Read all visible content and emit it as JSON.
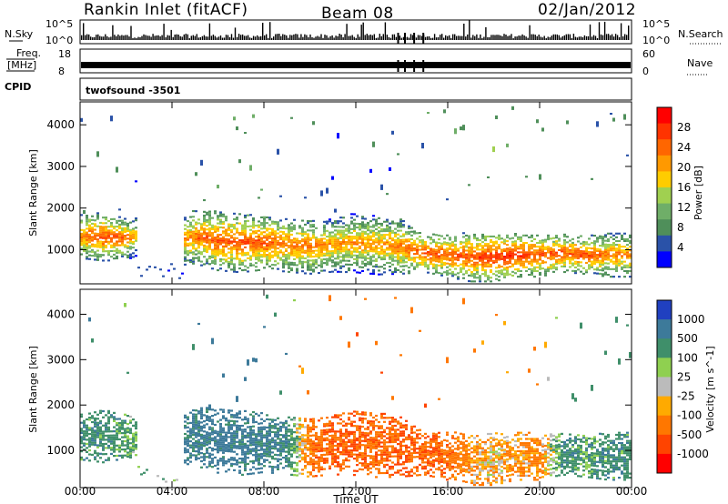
{
  "header": {
    "title": "Rankin Inlet (fitACF)",
    "beam": "Beam 08",
    "date": "02/Jan/2012"
  },
  "panels": {
    "nsky_label": "N.Sky",
    "nsearch_label": "N.Search",
    "freq_label_1": "Freq.",
    "freq_label_2": "[MHz]",
    "nave_label": "Nave",
    "cpid_label": "CPID",
    "cpid_value": "twofsound -3501",
    "nsky_ticks": [
      "10^5",
      "10^0"
    ],
    "nsearch_ticks": [
      "10^5",
      "10^0"
    ],
    "freq_ticks": [
      "18",
      "8"
    ],
    "nave_ticks": [
      "60",
      "0"
    ]
  },
  "colors": {
    "power_scale": [
      "#0000ff",
      "#2a52a8",
      "#4f8f5a",
      "#6fae68",
      "#a0d050",
      "#ffcc00",
      "#ff9900",
      "#ff6600",
      "#ff3300",
      "#ff0000"
    ],
    "velocity_scale": [
      "#2040c0",
      "#3d7a9a",
      "#3f8f6a",
      "#8fd050",
      "#bbbbbb",
      "#ffaa00",
      "#ff7700",
      "#ff4400",
      "#ff0000"
    ]
  },
  "chart_data": [
    {
      "type": "heatmap",
      "name": "power",
      "xlabel": "Time UT",
      "ylabel": "Slant Range [km]",
      "x_tick_labels": [
        "00:00",
        "04:00",
        "08:00",
        "12:00",
        "16:00",
        "20:00",
        "00:00"
      ],
      "y_tick_labels": [
        "1000",
        "2000",
        "3000",
        "4000"
      ],
      "ylim": [
        180,
        4550
      ],
      "colorbar_label": "Power [dB]",
      "colorbar_ticks": [
        "4",
        "8",
        "12",
        "16",
        "20",
        "24",
        "28"
      ],
      "x_hours": [
        0.0,
        1.0,
        2.0,
        2.5,
        3.5,
        4.5,
        5.0,
        6.0,
        7.0,
        8.0,
        9.0,
        10.0,
        11.0,
        12.0,
        13.0,
        14.0,
        15.0,
        16.0,
        17.0,
        18.0,
        19.0,
        20.0,
        21.0,
        22.0,
        23.0,
        24.0
      ],
      "echo_center_km": [
        1300,
        1300,
        1250,
        1300,
        null,
        1200,
        1300,
        1200,
        1150,
        1150,
        1100,
        1050,
        1100,
        1150,
        1100,
        1050,
        900,
        850,
        800,
        800,
        850,
        850,
        900,
        850,
        850,
        850
      ],
      "echo_halfwidth_km": [
        400,
        450,
        400,
        350,
        null,
        450,
        500,
        550,
        550,
        500,
        500,
        500,
        500,
        550,
        550,
        500,
        350,
        400,
        450,
        450,
        400,
        400,
        350,
        350,
        400,
        400
      ],
      "peak_power_db": [
        26,
        28,
        26,
        22,
        null,
        24,
        26,
        28,
        28,
        28,
        26,
        26,
        24,
        24,
        24,
        26,
        28,
        28,
        28,
        30,
        30,
        28,
        28,
        28,
        26,
        26
      ]
    },
    {
      "type": "heatmap",
      "name": "velocity",
      "xlabel": "Time UT",
      "ylabel": "Slant Range [km]",
      "x_tick_labels": [
        "00:00",
        "04:00",
        "08:00",
        "12:00",
        "16:00",
        "20:00",
        "00:00"
      ],
      "y_tick_labels": [
        "1000",
        "2000",
        "3000",
        "4000"
      ],
      "ylim": [
        180,
        4550
      ],
      "colorbar_label": "Velocity [m s^-1]",
      "colorbar_ticks": [
        "1000",
        "500",
        "100",
        "25",
        "-25",
        "-100",
        "-500",
        "-1000"
      ],
      "x_hours": [
        0.0,
        1.0,
        2.0,
        2.5,
        3.5,
        4.5,
        5.0,
        6.0,
        7.0,
        8.0,
        9.0,
        10.0,
        11.0,
        12.0,
        13.0,
        14.0,
        15.0,
        16.0,
        17.0,
        18.0,
        19.0,
        20.0,
        21.0,
        22.0,
        23.0,
        24.0
      ],
      "dominant_velocity_ms": [
        200,
        200,
        150,
        100,
        null,
        300,
        300,
        350,
        300,
        300,
        250,
        -200,
        -300,
        -300,
        -250,
        -300,
        -300,
        -250,
        -100,
        -50,
        -100,
        -150,
        200,
        150,
        200,
        200
      ]
    }
  ]
}
